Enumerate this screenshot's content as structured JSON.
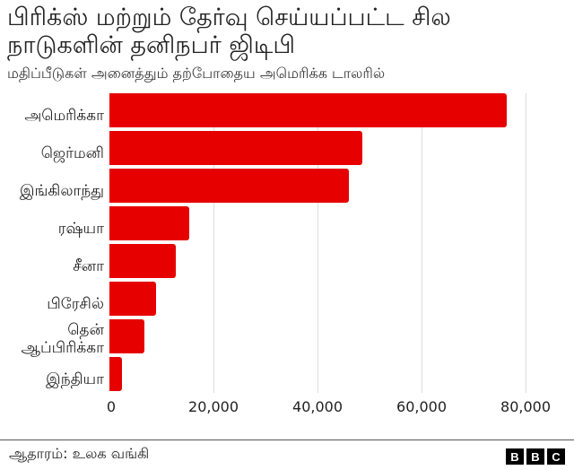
{
  "header": {
    "title": "பிரிக்ஸ் மற்றும் தேர்வு செய்யப்பட்ட சில நாடுகளின் தனிநபர் ஜிடிபி",
    "subtitle": "மதிப்பீடுகள் அனைத்தும் தற்போதைய அமெரிக்க டாலரில்"
  },
  "footer": {
    "source": "ஆதாரம்: உலக வங்கி",
    "logo": [
      "B",
      "B",
      "C"
    ]
  },
  "colors": {
    "bar": "#e60000",
    "grid": "#dcdcdc"
  },
  "chart_data": {
    "type": "bar",
    "orientation": "horizontal",
    "title": "பிரிக்ஸ் மற்றும் தேர்வு செய்யப்பட்ட சில நாடுகளின் தனிநபர் ஜிடிபி",
    "subtitle": "மதிப்பீடுகள் அனைத்தும் தற்போதைய அமெரிக்க டாலரில்",
    "categories": [
      "அமெரிக்கா",
      "ஜெர்மனி",
      "இங்கிலாந்து",
      "ரஷ்யா",
      "சீனா",
      "பிரேசில்",
      "தென் ஆப்பிரிக்கா",
      "இந்தியா"
    ],
    "values": [
      76400,
      48700,
      46100,
      15300,
      12700,
      9000,
      6800,
      2400
    ],
    "xlabel": "",
    "ylabel": "",
    "xlim": [
      0,
      80000
    ],
    "xticks": [
      "0",
      "20,000",
      "40,000",
      "60,000",
      "80,000"
    ],
    "grid": true,
    "legend": null,
    "source": "ஆதாரம்: உலக வங்கி"
  }
}
